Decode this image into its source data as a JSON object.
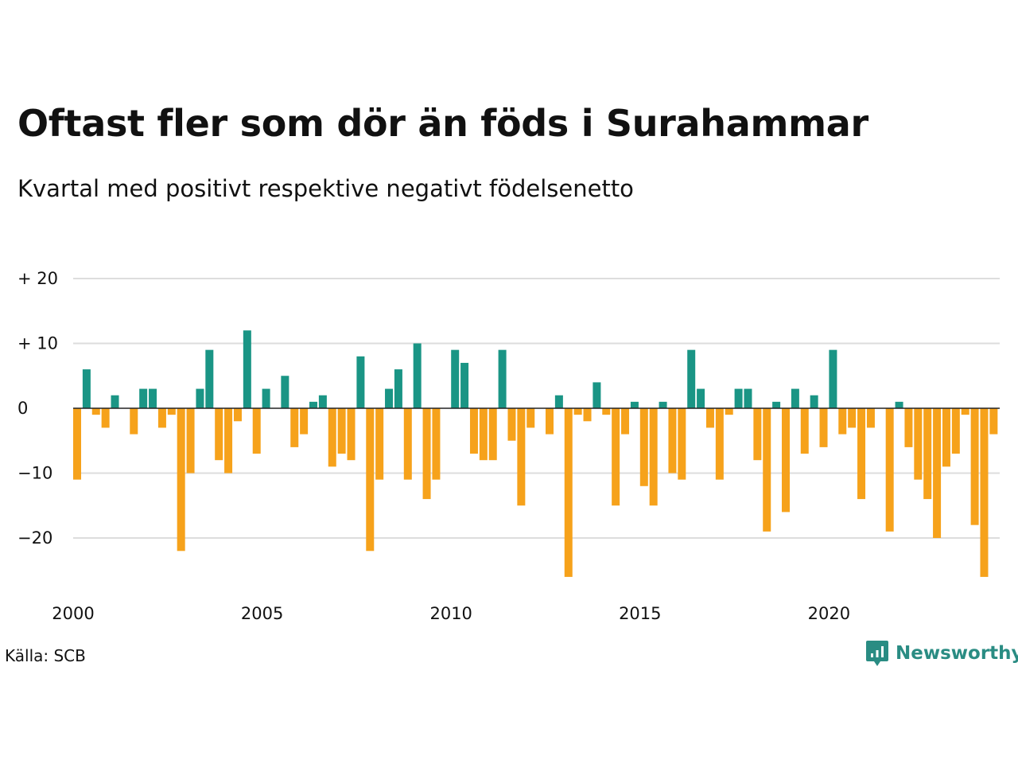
{
  "chart_data": {
    "type": "bar",
    "title": "Oftast fler som dör än föds i Surahammar",
    "subtitle": "Kvartal med positivt respektive negativt födelsenetto",
    "x_start_year": 2000,
    "x_ticks": [
      "2000",
      "2005",
      "2010",
      "2015",
      "2020"
    ],
    "y_ticks": [
      {
        "value": 20,
        "label": "+ 20"
      },
      {
        "value": 10,
        "label": "+ 10"
      },
      {
        "value": 0,
        "label": "0"
      },
      {
        "value": -10,
        "label": "−10"
      },
      {
        "value": -20,
        "label": "−20"
      }
    ],
    "ylim": [
      -26,
      20
    ],
    "grid": true,
    "colors": {
      "positive": "#1a9585",
      "negative": "#f6a21b",
      "grid": "#dddddd",
      "zero": "#222222"
    },
    "values": [
      -11,
      6,
      -1,
      -3,
      2,
      0,
      -4,
      3,
      3,
      -3,
      -1,
      -22,
      -10,
      3,
      9,
      -8,
      -10,
      -2,
      12,
      -7,
      3,
      0,
      5,
      -6,
      -4,
      1,
      2,
      -9,
      -7,
      -8,
      8,
      -22,
      -11,
      3,
      6,
      -11,
      10,
      -14,
      -11,
      0,
      9,
      7,
      -7,
      -8,
      -8,
      9,
      -5,
      -15,
      -3,
      0,
      -4,
      2,
      -26,
      -1,
      -2,
      4,
      -1,
      -15,
      -4,
      1,
      -12,
      -15,
      1,
      -10,
      -11,
      9,
      3,
      -3,
      -11,
      -1,
      3,
      3,
      -8,
      -19,
      1,
      -16,
      3,
      -7,
      2,
      -6,
      9,
      -4,
      -3,
      -14,
      -3,
      0,
      -19,
      1,
      -6,
      -11,
      -14,
      -20,
      -9,
      -7,
      -1,
      -18,
      -26,
      -4
    ]
  },
  "footer": {
    "source": "Källa: SCB",
    "brand": "Newsworthy",
    "logo_icon": "newsworthy-logo-icon"
  }
}
